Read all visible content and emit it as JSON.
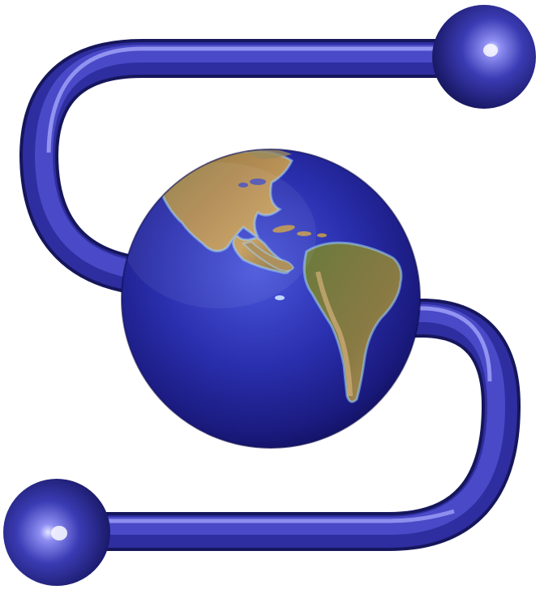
{
  "logo": {
    "description_icon": "globe-s-logo-icon",
    "colors": {
      "tube_dark": "#1f1f7a",
      "tube_mid": "#3a3ab8",
      "tube_light": "#7a7af0",
      "ocean_dark": "#14146e",
      "ocean_light": "#3f4bd6",
      "land_light": "#c29a5c",
      "land_dark": "#6b7a3a",
      "shallow_water": "#8fd0ff"
    }
  }
}
